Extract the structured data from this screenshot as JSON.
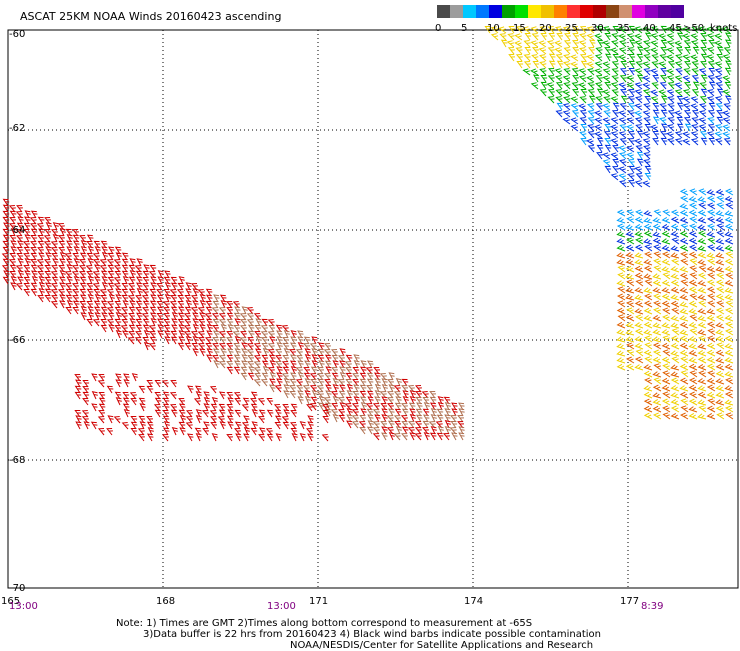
{
  "title": "ASCAT 25KM NOAA Winds 20160423 ascending",
  "legend": {
    "unit_label": "knots",
    "bins": [
      {
        "label": "0",
        "color": "#4a4a4a"
      },
      {
        "label": "",
        "color": "#9c9c9c"
      },
      {
        "label": "5",
        "color": "#00c8ff"
      },
      {
        "label": "",
        "color": "#0078ff"
      },
      {
        "label": "10",
        "color": "#0000e0"
      },
      {
        "label": "",
        "color": "#00a000"
      },
      {
        "label": "15",
        "color": "#00e000"
      },
      {
        "label": "",
        "color": "#ffe800"
      },
      {
        "label": "20",
        "color": "#f0c000"
      },
      {
        "label": "",
        "color": "#ff8000"
      },
      {
        "label": "25",
        "color": "#ff3030"
      },
      {
        "label": "",
        "color": "#e00000"
      },
      {
        "label": "30",
        "color": "#b00000"
      },
      {
        "label": "",
        "color": "#8b4513"
      },
      {
        "label": "35",
        "color": "#d09070"
      },
      {
        "label": "",
        "color": "#e000e0"
      },
      {
        "label": "40",
        "color": "#9000c0"
      },
      {
        "label": "",
        "color": "#6000a0"
      },
      {
        "label": "45",
        "color": "#5000a0"
      },
      {
        "label": ">50",
        "color": "#40008c"
      }
    ]
  },
  "axes": {
    "lat_labels": [
      "-60",
      "-62",
      "-64",
      "-66",
      "-68",
      "-70"
    ],
    "lon_labels": [
      "165",
      "168",
      "171",
      "174",
      "177"
    ],
    "times": [
      "13:00",
      "13:00",
      "8:39"
    ]
  },
  "notes": {
    "line1": "Note: 1) Times are GMT 2)Times along bottom correspond to measurement at -65S",
    "line2": "3)Data buffer is 22 hrs from 20160423 4) Black wind barbs indicate possible contamination",
    "line3": "NOAA/NESDIS/Center for Satellite Applications and Research"
  },
  "colors": {
    "red": "#d00000",
    "tan": "#b07050",
    "yellow": "#f0d000",
    "orange": "#e06000",
    "green": "#00b000",
    "blue": "#0030e0",
    "cyan": "#00a0ff"
  }
}
